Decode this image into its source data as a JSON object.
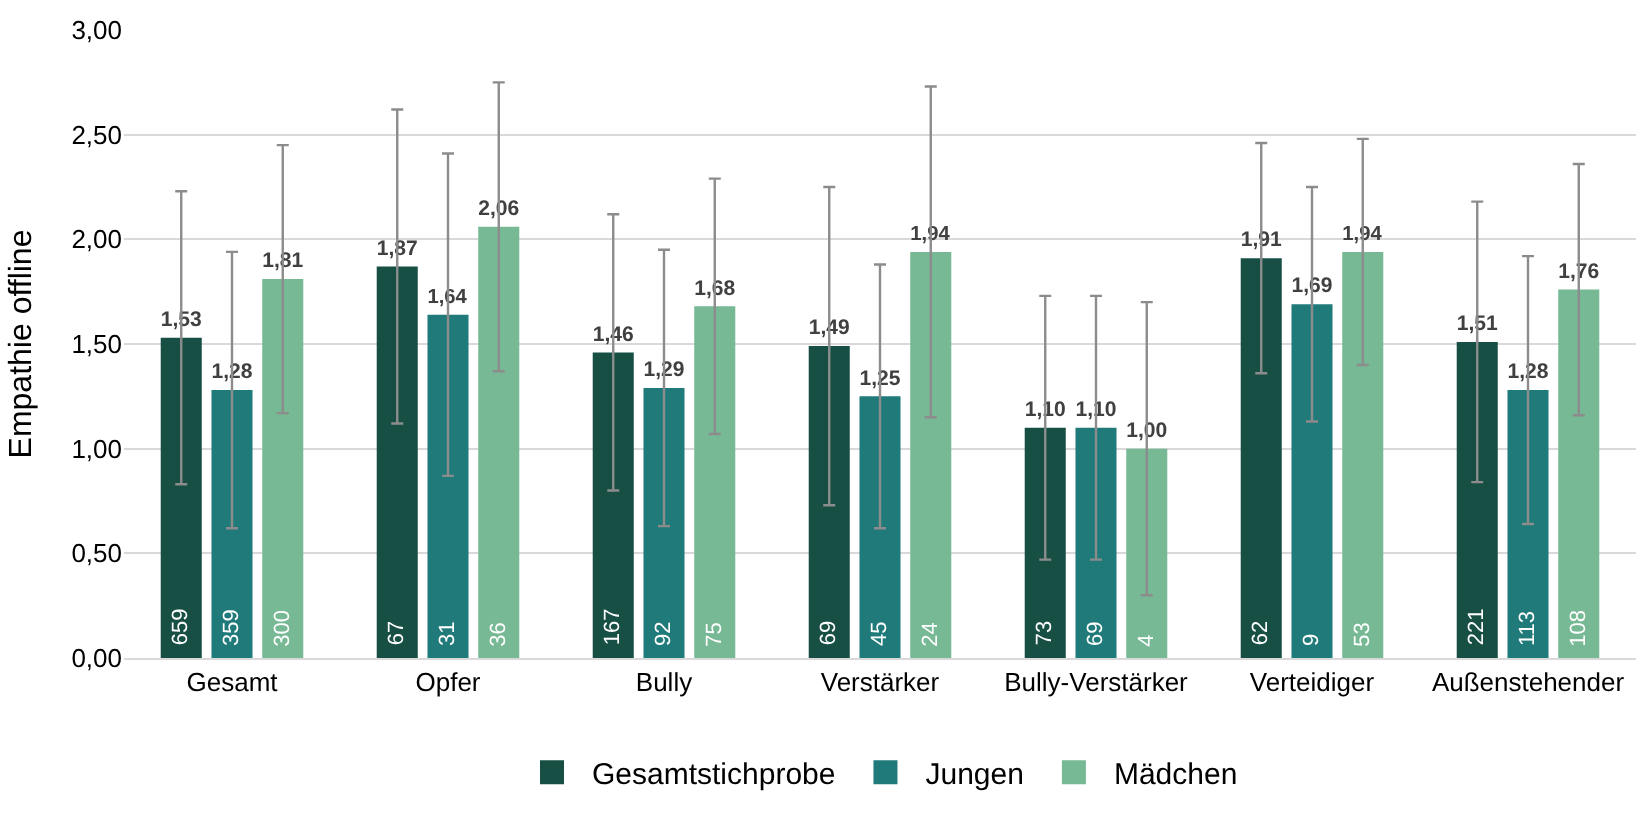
{
  "chart_data": {
    "type": "bar",
    "ylabel": "Empathie offline",
    "categories": [
      "Gesamt",
      "Opfer",
      "Bully",
      "Verstärker",
      "Bully-Verstärker",
      "Verteidiger",
      "Außenstehender"
    ],
    "series": [
      {
        "name": "Gesamtstichprobe",
        "color": "#174f44",
        "values": [
          1.53,
          1.87,
          1.46,
          1.49,
          1.1,
          1.91,
          1.51
        ],
        "value_labels": [
          "1,53",
          "1,87",
          "1,46",
          "1,49",
          "1,10",
          "1,91",
          "1,51"
        ],
        "errors": [
          0.7,
          0.75,
          0.66,
          0.76,
          0.63,
          0.55,
          0.67
        ]
      },
      {
        "name": "Jungen",
        "color": "#217a7a",
        "values": [
          1.28,
          1.64,
          1.29,
          1.25,
          1.1,
          1.69,
          1.28
        ],
        "value_labels": [
          "1,28",
          "1,64",
          "1,29",
          "1,25",
          "1,10",
          "1,69",
          "1,28"
        ],
        "errors": [
          0.66,
          0.77,
          0.66,
          0.63,
          0.63,
          0.56,
          0.64
        ]
      },
      {
        "name": "Mädchen",
        "color": "#77b995",
        "values": [
          1.81,
          2.06,
          1.68,
          1.94,
          1.0,
          1.94,
          1.76
        ],
        "value_labels": [
          "1,81",
          "2,06",
          "1,68",
          "1,94",
          "1,00",
          "1,94",
          "1,76"
        ],
        "errors": [
          0.64,
          0.69,
          0.61,
          0.79,
          0.7,
          0.54,
          0.6
        ]
      }
    ],
    "ylim": [
      0,
      3
    ],
    "yticks": [
      {
        "value": 0,
        "label": "0,00"
      },
      {
        "value": 0.5,
        "label": "0,50"
      },
      {
        "value": 1,
        "label": "1,00"
      },
      {
        "value": 1.5,
        "label": "1,50"
      },
      {
        "value": 2,
        "label": "2,00"
      },
      {
        "value": 2.5,
        "label": "2,50"
      },
      {
        "value": 3,
        "label": "3,00"
      }
    ],
    "grid": "y",
    "legend": "bottom",
    "annotations": [
      {
        "text": "659",
        "x": "Gesamt",
        "y": 0
      },
      {
        "text": "359",
        "x": "Gesamt",
        "y": 0
      },
      {
        "text": "300",
        "x": "Gesamt",
        "y": 0
      },
      {
        "text": "67",
        "x": "Opfer",
        "y": 0
      },
      {
        "text": "31",
        "x": "Opfer",
        "y": 0
      },
      {
        "text": "36",
        "x": "Opfer",
        "y": 0
      },
      {
        "text": "167",
        "x": "Bully",
        "y": 0
      },
      {
        "text": "92",
        "x": "Bully",
        "y": 0
      },
      {
        "text": "75",
        "x": "Bully",
        "y": 0
      },
      {
        "text": "69",
        "x": "Verstärker",
        "y": 0
      },
      {
        "text": "45",
        "x": "Verstärker",
        "y": 0
      },
      {
        "text": "24",
        "x": "Verstärker",
        "y": 0
      },
      {
        "text": "73",
        "x": "Bully-Verstärker",
        "y": 0
      },
      {
        "text": "69",
        "x": "Bully-Verstärker",
        "y": 0
      },
      {
        "text": "4",
        "x": "Bully-Verstärker",
        "y": 0
      },
      {
        "text": "62",
        "x": "Verteidiger",
        "y": 0
      },
      {
        "text": "9",
        "x": "Verteidiger",
        "y": 0
      },
      {
        "text": "53",
        "x": "Verteidiger",
        "y": 0
      },
      {
        "text": "221",
        "x": "Außenstehender",
        "y": 0
      },
      {
        "text": "113",
        "x": "Außenstehender",
        "y": 0
      },
      {
        "text": "108",
        "x": "Außenstehender",
        "y": 0
      }
    ]
  }
}
